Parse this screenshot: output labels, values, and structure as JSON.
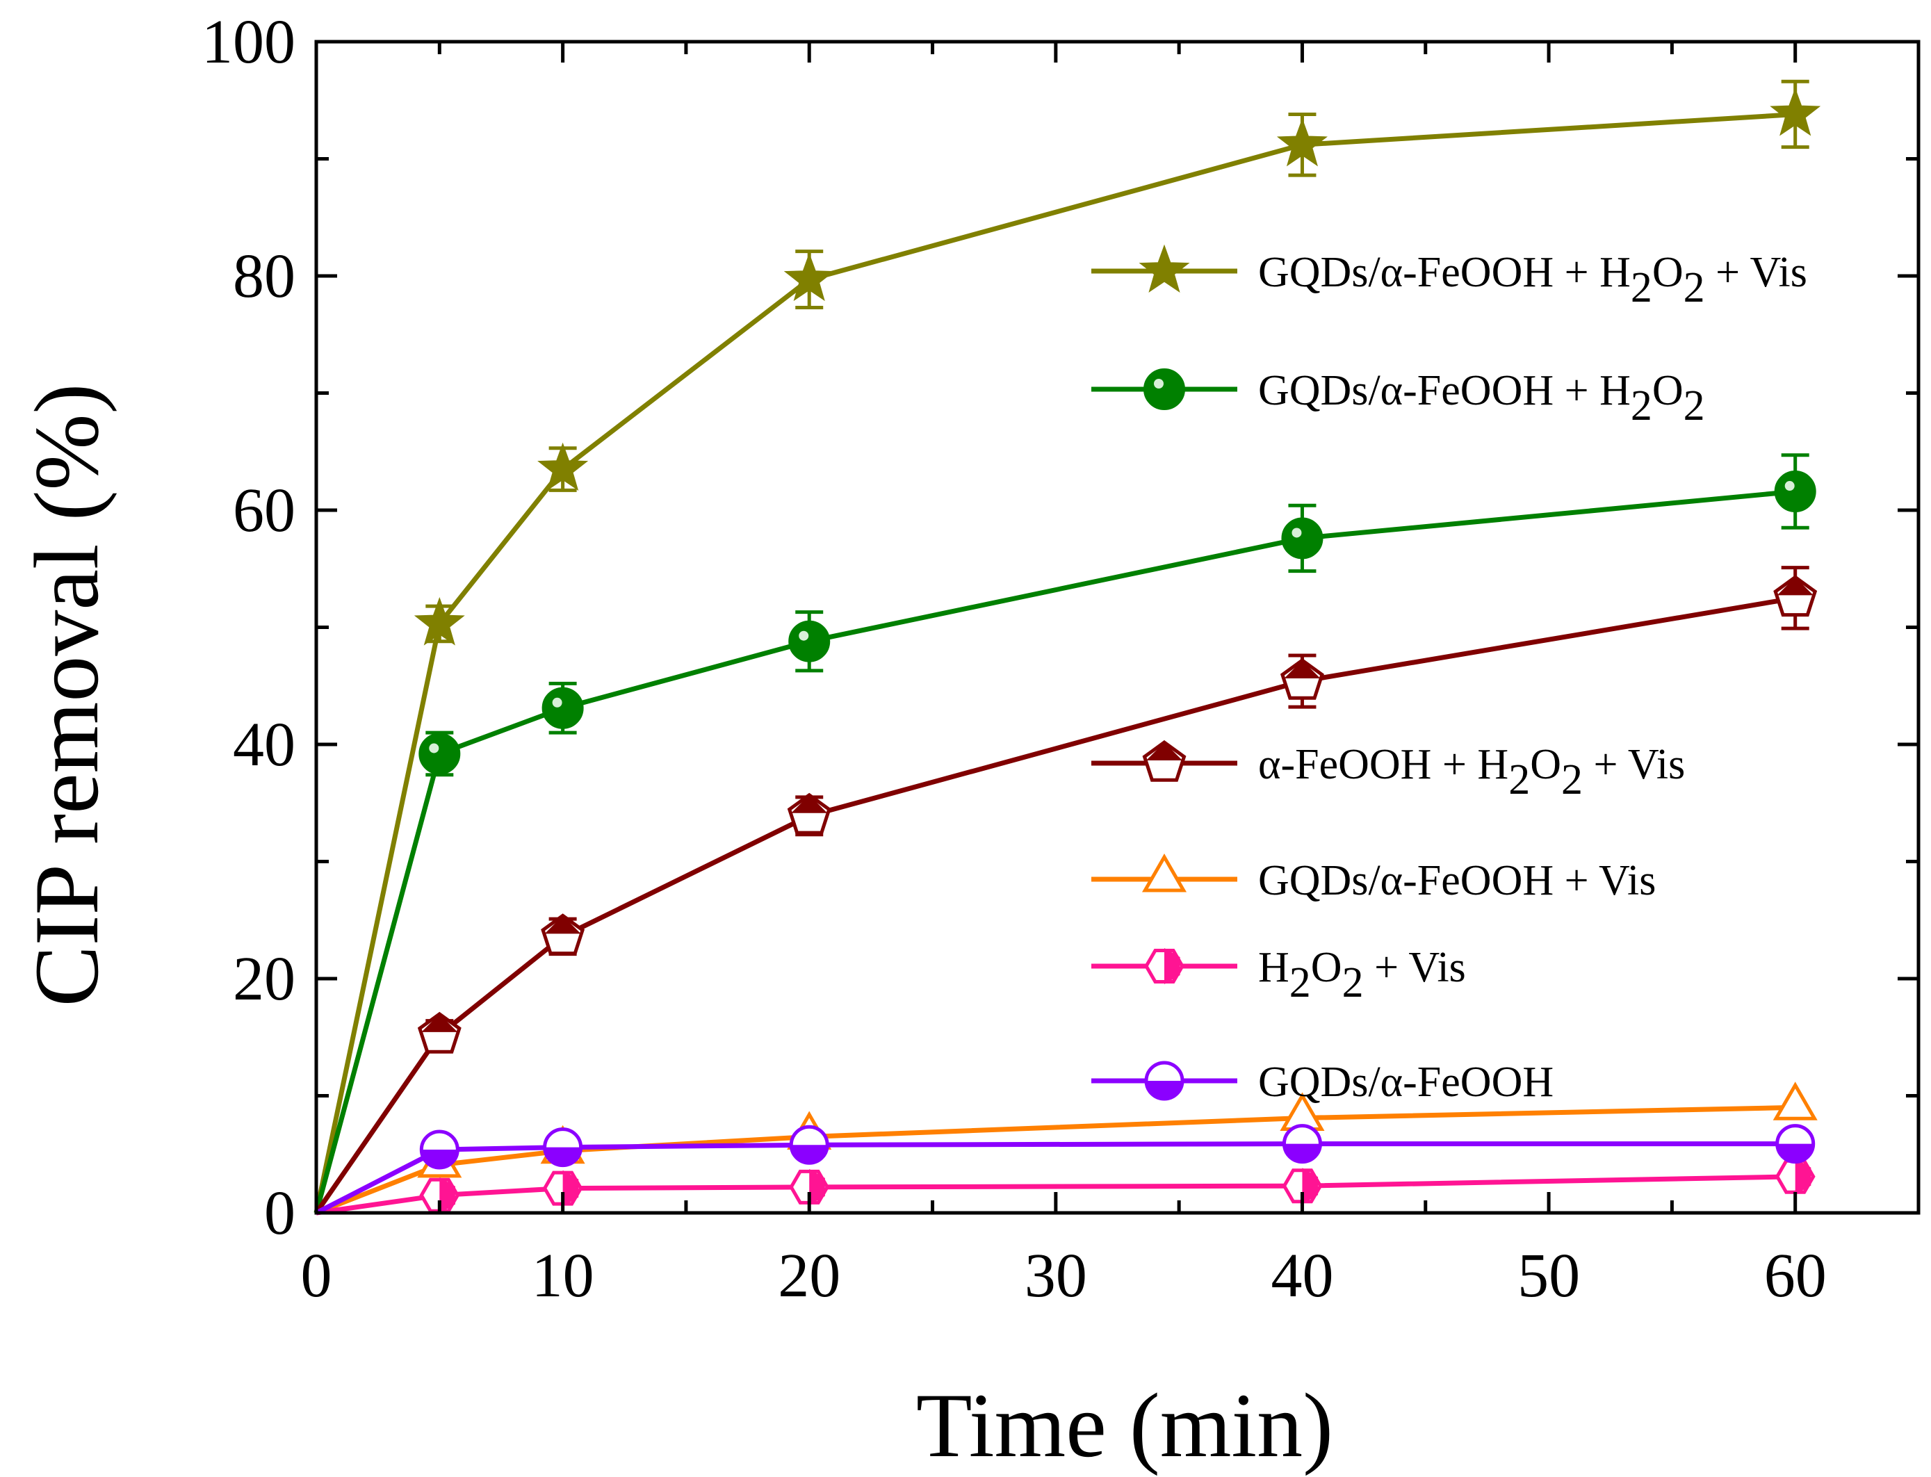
{
  "chart_data": {
    "type": "line",
    "title": "",
    "xlabel": "Time (min)",
    "ylabel": "CIP removal (%)",
    "xlim": [
      0,
      65
    ],
    "ylim": [
      0,
      100
    ],
    "xticks": [
      0,
      10,
      20,
      30,
      40,
      50,
      60
    ],
    "yticks": [
      0,
      20,
      40,
      60,
      80,
      100
    ],
    "x_minor_step": 5,
    "y_minor_step": 10,
    "grid": false,
    "legend_position": "right",
    "series": [
      {
        "name": "GQDs/α-FeOOH + H2O2 + Vis",
        "label_parts": [
          {
            "t": "GQDs/α-FeOOH + H"
          },
          {
            "t": "2",
            "sub": true
          },
          {
            "t": "O"
          },
          {
            "t": "2",
            "sub": true
          },
          {
            "t": " + Vis"
          }
        ],
        "color": "#808000",
        "marker": "star",
        "x": [
          0,
          5,
          10,
          20,
          40,
          60
        ],
        "y": [
          0,
          50.3,
          63.5,
          79.7,
          91.2,
          93.8
        ],
        "err": [
          0,
          1.5,
          1.8,
          2.4,
          2.6,
          2.8
        ]
      },
      {
        "name": "GQDs/α-FeOOH + H2O2",
        "label_parts": [
          {
            "t": "GQDs/α-FeOOH + H"
          },
          {
            "t": "2",
            "sub": true
          },
          {
            "t": "O"
          },
          {
            "t": "2",
            "sub": true
          }
        ],
        "color": "#008000",
        "marker": "circle-filled",
        "x": [
          0,
          5,
          10,
          20,
          40,
          60
        ],
        "y": [
          0,
          39.2,
          43.1,
          48.8,
          57.6,
          61.6
        ],
        "err": [
          0,
          1.8,
          2.1,
          2.5,
          2.8,
          3.1
        ]
      },
      {
        "name": "α-FeOOH + H2O2 + Vis",
        "label_parts": [
          {
            "t": "α-FeOOH + H"
          },
          {
            "t": "2",
            "sub": true
          },
          {
            "t": "O"
          },
          {
            "t": "2",
            "sub": true
          },
          {
            "t": " + Vis"
          }
        ],
        "color": "#800000",
        "marker": "pentagon-half",
        "x": [
          0,
          5,
          10,
          20,
          40,
          60
        ],
        "y": [
          0,
          15.2,
          23.6,
          33.9,
          45.4,
          52.5
        ],
        "err": [
          0,
          1.2,
          1.5,
          1.6,
          2.2,
          2.6
        ]
      },
      {
        "name": "GQDs/α-FeOOH + Vis",
        "label_parts": [
          {
            "t": "GQDs/α-FeOOH + Vis"
          }
        ],
        "color": "#ff8000",
        "marker": "triangle-open",
        "x": [
          0,
          5,
          10,
          20,
          40,
          60
        ],
        "y": [
          0,
          4.1,
          5.3,
          6.5,
          8.1,
          9.0
        ],
        "err": [
          0,
          0,
          0,
          0,
          0,
          0
        ]
      },
      {
        "name": "H2O2 + Vis",
        "label_parts": [
          {
            "t": "H"
          },
          {
            "t": "2",
            "sub": true
          },
          {
            "t": "O"
          },
          {
            "t": "2",
            "sub": true
          },
          {
            "t": " + Vis"
          }
        ],
        "color": "#ff1493",
        "marker": "hexagon-half",
        "x": [
          0,
          5,
          10,
          20,
          40,
          60
        ],
        "y": [
          0,
          1.5,
          2.1,
          2.2,
          2.3,
          3.1
        ],
        "err": [
          0,
          0,
          0,
          0,
          0,
          0
        ]
      },
      {
        "name": "GQDs/α-FeOOH",
        "label_parts": [
          {
            "t": "GQDs/α-FeOOH"
          }
        ],
        "color": "#8b00ff",
        "marker": "circle-half",
        "x": [
          0,
          5,
          10,
          20,
          40,
          60
        ],
        "y": [
          0,
          5.4,
          5.6,
          5.8,
          5.9,
          5.9
        ],
        "err": [
          0,
          0,
          0,
          0,
          0,
          0
        ]
      }
    ]
  }
}
